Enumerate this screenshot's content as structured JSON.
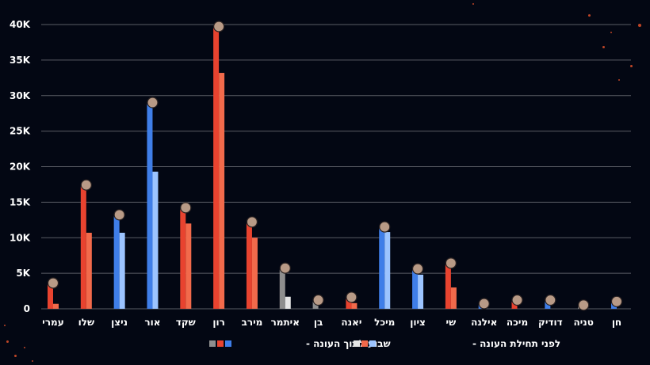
{
  "colors": {
    "background": "#030713",
    "red": "#e8432f",
    "blue": "#3f7ee8",
    "gray": "#8e8e8e",
    "red_light": "#f26a4b",
    "blue_light": "#9cc4ff",
    "gray_light": "#e6e6e6",
    "grid": "#ffffff",
    "text": "#ffffff"
  },
  "chart_data": {
    "type": "bar",
    "ylim": [
      0,
      40000
    ],
    "yticks": [
      0,
      5000,
      10000,
      15000,
      20000,
      25000,
      30000,
      35000,
      40000
    ],
    "ytick_labels": [
      "0",
      "5K",
      "10K",
      "15K",
      "20K",
      "25K",
      "30K",
      "35K",
      "40K"
    ],
    "grid": true,
    "direction": "rtl",
    "categories": [
      "חן",
      "טניה",
      "דודיק",
      "מיכה",
      "אילנה",
      "שי",
      "ציון",
      "מיכל",
      "יאנה",
      "בן",
      "איתמר",
      "מירב",
      "רון",
      "שקד",
      "אור",
      "ניצן",
      "שלו",
      "עמרי"
    ],
    "group_colors": [
      "blue",
      "gray",
      "blue",
      "red",
      "blue",
      "red",
      "blue",
      "blue",
      "red",
      "gray",
      "gray",
      "red",
      "red",
      "red",
      "blue",
      "blue",
      "red",
      "red"
    ],
    "series": [
      {
        "name": "שבוע לתוך העונה",
        "values": [
          800,
          300,
          1000,
          1000,
          500,
          6200,
          5400,
          11300,
          1400,
          1000,
          5500,
          12000,
          39500,
          14000,
          28800,
          13000,
          17200,
          3400
        ]
      },
      {
        "name": "לפני תחילת העונה",
        "values": [
          0,
          0,
          0,
          0,
          0,
          3000,
          4800,
          10800,
          800,
          0,
          1700,
          10000,
          33200,
          12000,
          19300,
          10700,
          10700,
          700
        ]
      }
    ],
    "legend_position": "bottom",
    "legend": [
      {
        "label": "שבוע לתוך העונה -",
        "swatches": [
          "gray",
          "red",
          "blue"
        ]
      },
      {
        "label": "לפני תחילת העונה -",
        "swatches": [
          "gray_light",
          "red_light",
          "blue_light"
        ]
      }
    ]
  }
}
